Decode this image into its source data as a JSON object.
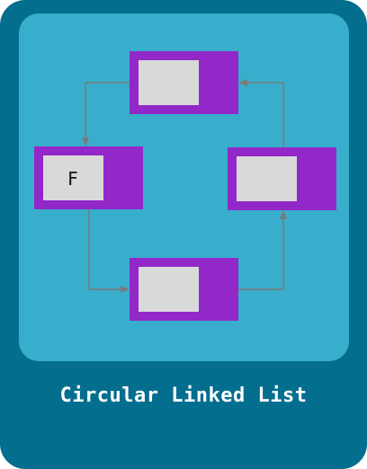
{
  "caption": "Circular Linked List",
  "colors": {
    "frame": "#046e8f",
    "panel": "#38aecc",
    "node_pointer": "#9228c8",
    "node_data": "#d9d9d9",
    "arrow": "#7a7a7a",
    "caption": "#ffffff"
  },
  "nodes": [
    {
      "id": "node-top",
      "label": ""
    },
    {
      "id": "node-left",
      "label": "F"
    },
    {
      "id": "node-bottom",
      "label": ""
    },
    {
      "id": "node-right",
      "label": ""
    }
  ],
  "links": [
    {
      "from": "node-top",
      "to": "node-left"
    },
    {
      "from": "node-left",
      "to": "node-bottom"
    },
    {
      "from": "node-bottom",
      "to": "node-right"
    },
    {
      "from": "node-right",
      "to": "node-top"
    }
  ]
}
